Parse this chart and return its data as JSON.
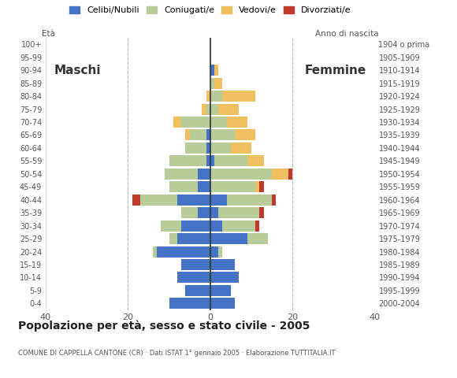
{
  "age_groups": [
    "0-4",
    "5-9",
    "10-14",
    "15-19",
    "20-24",
    "25-29",
    "30-34",
    "35-39",
    "40-44",
    "45-49",
    "50-54",
    "55-59",
    "60-64",
    "65-69",
    "70-74",
    "75-79",
    "80-84",
    "85-89",
    "90-94",
    "95-99",
    "100+"
  ],
  "birth_years": [
    "2000-2004",
    "1995-1999",
    "1990-1994",
    "1985-1989",
    "1980-1984",
    "1975-1979",
    "1970-1974",
    "1965-1969",
    "1960-1964",
    "1955-1959",
    "1950-1954",
    "1945-1949",
    "1940-1944",
    "1935-1939",
    "1930-1934",
    "1925-1929",
    "1920-1924",
    "1915-1919",
    "1910-1914",
    "1905-1909",
    "1904 o prima"
  ],
  "males": {
    "celibi": [
      10,
      6,
      8,
      7,
      13,
      8,
      7,
      3,
      8,
      3,
      3,
      1,
      1,
      1,
      0,
      0,
      0,
      0,
      0,
      0,
      0
    ],
    "coniugati": [
      0,
      0,
      0,
      0,
      1,
      2,
      5,
      4,
      9,
      7,
      8,
      9,
      5,
      4,
      7,
      1,
      0,
      0,
      0,
      0,
      0
    ],
    "vedovi": [
      0,
      0,
      0,
      0,
      0,
      0,
      0,
      0,
      0,
      0,
      0,
      0,
      0,
      1,
      2,
      1,
      1,
      0,
      0,
      0,
      0
    ],
    "divorziati": [
      0,
      0,
      0,
      0,
      0,
      0,
      0,
      0,
      2,
      0,
      0,
      0,
      0,
      0,
      0,
      0,
      0,
      0,
      0,
      0,
      0
    ]
  },
  "females": {
    "nubili": [
      6,
      5,
      7,
      6,
      2,
      9,
      3,
      2,
      4,
      0,
      0,
      1,
      0,
      0,
      0,
      0,
      0,
      0,
      1,
      0,
      0
    ],
    "coniugate": [
      0,
      0,
      0,
      0,
      1,
      5,
      8,
      10,
      11,
      11,
      15,
      8,
      5,
      6,
      4,
      2,
      3,
      1,
      0,
      0,
      0
    ],
    "vedove": [
      0,
      0,
      0,
      0,
      0,
      0,
      0,
      0,
      0,
      1,
      4,
      4,
      5,
      5,
      5,
      5,
      8,
      2,
      1,
      0,
      0
    ],
    "divorziate": [
      0,
      0,
      0,
      0,
      0,
      0,
      1,
      1,
      1,
      1,
      1,
      0,
      0,
      0,
      0,
      0,
      0,
      0,
      0,
      0,
      0
    ]
  },
  "colors": {
    "celibi_nubili": "#4472c4",
    "coniugati": "#b8cc9a",
    "vedovi": "#f0c060",
    "divorziati": "#c0392b"
  },
  "title": "Popolazione per età, sesso e stato civile - 2005",
  "subtitle": "COMUNE DI CAPPELLA CANTONE (CR) · Dati ISTAT 1° gennaio 2005 · Elaborazione TUTTITALIA.IT",
  "xlabel_left": "Maschi",
  "xlabel_right": "Femmine",
  "ylabel_left": "Età",
  "ylabel_right": "Anno di nascita",
  "xlim": 40,
  "legend_labels": [
    "Celibi/Nubili",
    "Coniugati/e",
    "Vedovi/e",
    "Divorziati/e"
  ],
  "background_color": "#ffffff"
}
